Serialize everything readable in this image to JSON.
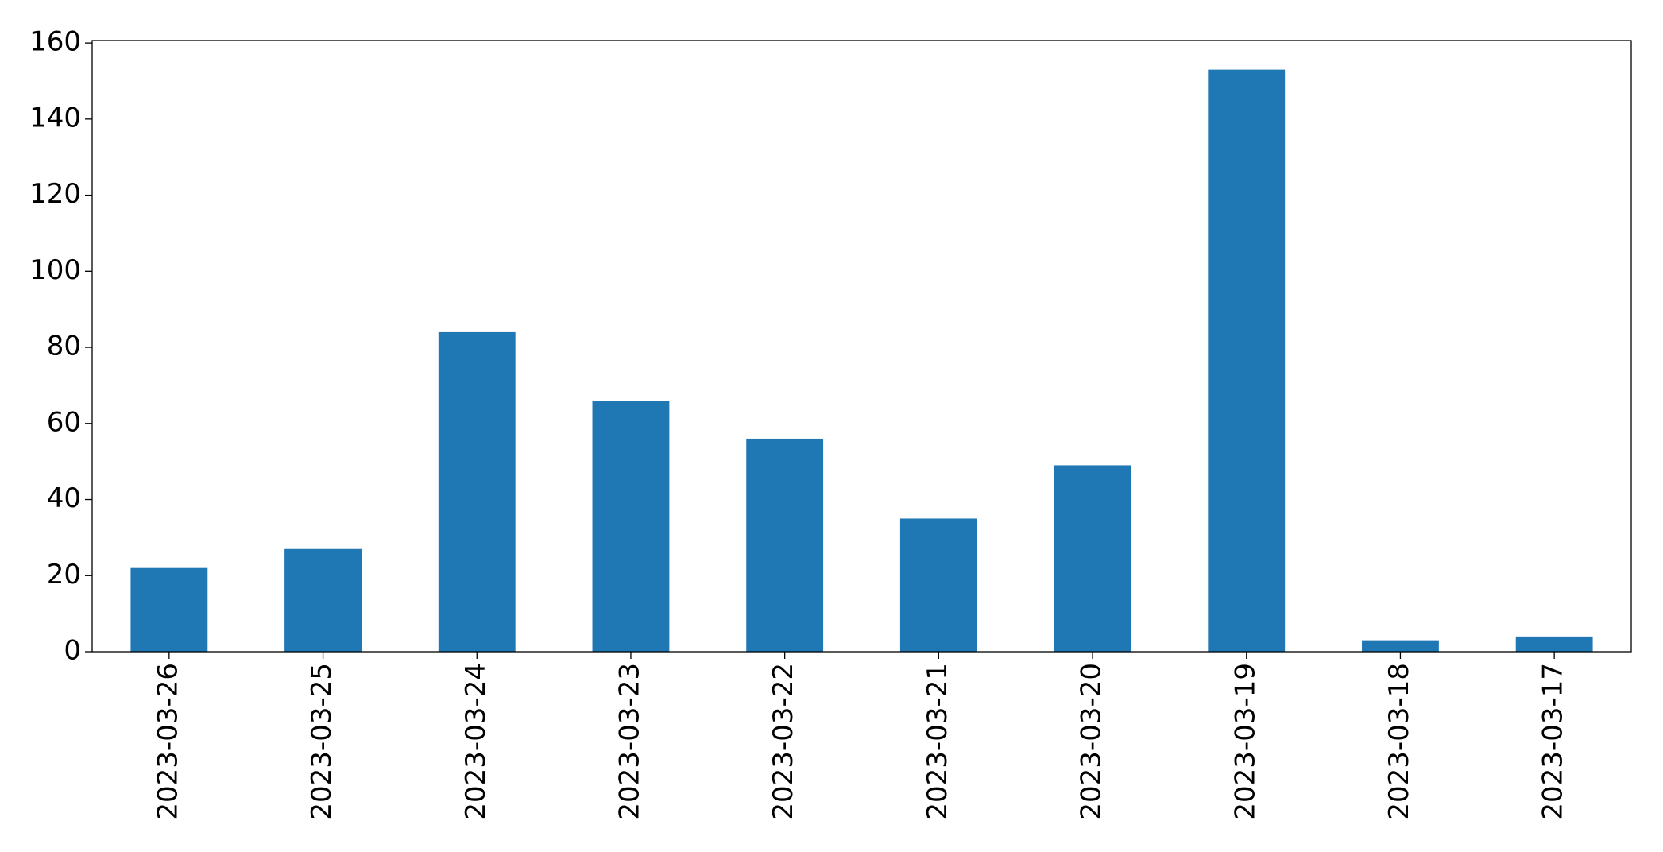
{
  "chart_data": {
    "type": "bar",
    "categories": [
      "2023-03-26",
      "2023-03-25",
      "2023-03-24",
      "2023-03-23",
      "2023-03-22",
      "2023-03-21",
      "2023-03-20",
      "2023-03-19",
      "2023-03-18",
      "2023-03-17"
    ],
    "values": [
      22,
      27,
      84,
      66,
      56,
      35,
      49,
      153,
      3,
      4
    ],
    "color": "#1f77b4",
    "ylim": [
      0,
      160.65
    ],
    "yticks": [
      0,
      20,
      40,
      60,
      80,
      100,
      120,
      140,
      160
    ],
    "grid": false
  }
}
